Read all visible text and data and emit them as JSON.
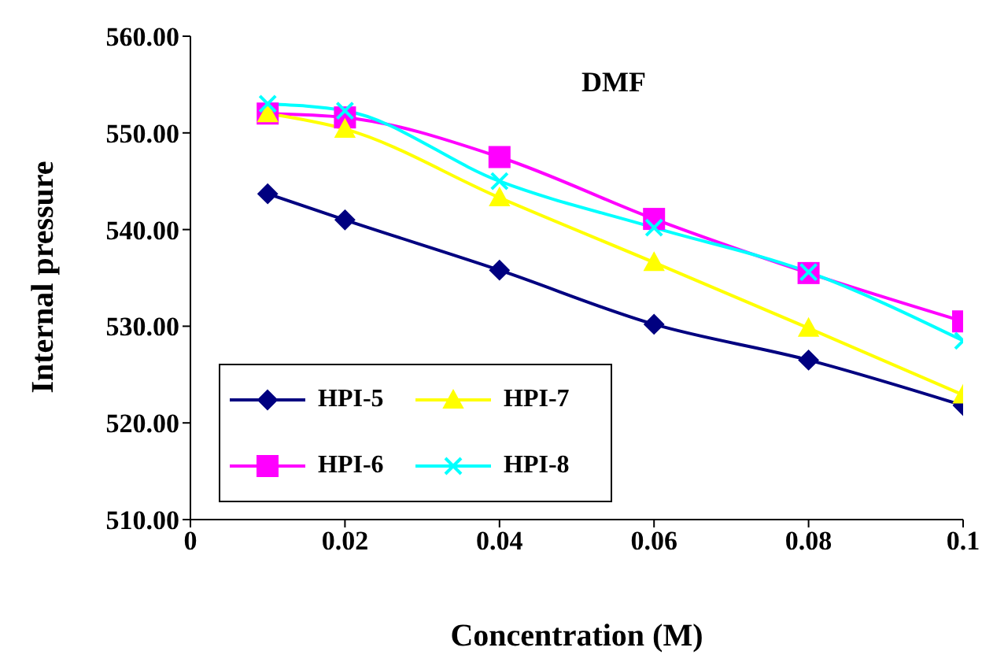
{
  "chart_data": {
    "type": "line",
    "title": "DMF",
    "xlabel": "Concentration (M)",
    "ylabel": "Internal pressure",
    "x": [
      0.01,
      0.02,
      0.04,
      0.06,
      0.08,
      0.1
    ],
    "series": [
      {
        "name": "HPI-5",
        "color": "#000080",
        "marker": "diamond",
        "values": [
          543.7,
          541.0,
          535.8,
          530.2,
          526.5,
          521.8
        ]
      },
      {
        "name": "HPI-6",
        "color": "#ff00ff",
        "marker": "square",
        "values": [
          552.0,
          551.6,
          547.5,
          541.1,
          535.5,
          530.5
        ]
      },
      {
        "name": "HPI-7",
        "color": "#ffff00",
        "marker": "triangle",
        "values": [
          552.0,
          550.4,
          543.3,
          536.6,
          529.8,
          522.9
        ]
      },
      {
        "name": "HPI-8",
        "color": "#00ffff",
        "marker": "cross",
        "values": [
          553.0,
          552.3,
          545.0,
          540.2,
          535.6,
          528.5
        ]
      }
    ],
    "xlim": [
      0,
      0.1
    ],
    "xticks": [
      0,
      0.02,
      0.04,
      0.06,
      0.08,
      0.1
    ],
    "ylim": [
      510,
      560
    ],
    "yticks": [
      {
        "value": 510,
        "label": "510.00"
      },
      {
        "value": 520,
        "label": "520.00"
      },
      {
        "value": 530,
        "label": "530.00"
      },
      {
        "value": 540,
        "label": "540.00"
      },
      {
        "value": 550,
        "label": "550.00"
      },
      {
        "value": 560,
        "label": "560.00"
      }
    ],
    "grid": false,
    "legend": "bottom left",
    "line_style": "solid"
  }
}
